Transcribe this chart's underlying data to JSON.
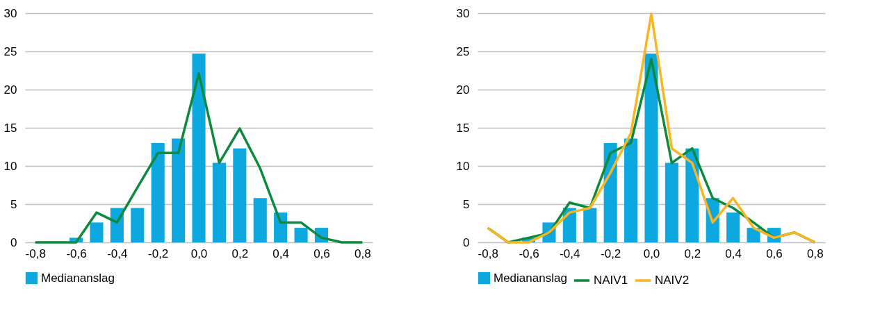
{
  "chart_data": [
    {
      "type": "bar",
      "categories": [
        "-0,8",
        null,
        "-0,6",
        null,
        "-0,4",
        null,
        "-0,2",
        null,
        "0,0",
        null,
        "0,2",
        null,
        "0,4",
        null,
        "0,6",
        null,
        "0,8"
      ],
      "ylim": [
        0,
        30
      ],
      "yticks": [
        0,
        5,
        10,
        15,
        20,
        25,
        30
      ],
      "grid": "y",
      "legend": "bottom",
      "series": [
        {
          "name": "Mediananslag",
          "color": "#0ea8e0",
          "values": [
            0,
            0,
            0.6,
            2.6,
            4.5,
            4.5,
            13,
            13.6,
            24.7,
            10.4,
            12.3,
            5.8,
            3.9,
            1.9,
            1.9,
            0,
            0
          ]
        },
        {
          "type": "line",
          "color": "#0a8a3c",
          "values": [
            0,
            0,
            0,
            3.9,
            2.6,
            7.2,
            11.7,
            11.7,
            22.1,
            10.4,
            14.9,
            9.7,
            2.6,
            2.6,
            0.6,
            0,
            0
          ]
        }
      ]
    },
    {
      "type": "bar",
      "categories": [
        "-0,8",
        null,
        "-0,6",
        null,
        "-0,4",
        null,
        "-0,2",
        null,
        "0,0",
        null,
        "0,2",
        null,
        "0,4",
        null,
        "0,6",
        null,
        "0,8"
      ],
      "ylim": [
        0,
        30
      ],
      "yticks": [
        0,
        5,
        10,
        15,
        20,
        25,
        30
      ],
      "grid": "y",
      "legend": "bottom",
      "series": [
        {
          "name": "Mediananslag",
          "color": "#0ea8e0",
          "values": [
            0,
            0,
            0.6,
            2.6,
            4.5,
            4.5,
            13,
            13.6,
            24.7,
            10.4,
            12.3,
            5.8,
            3.9,
            1.9,
            1.9,
            0,
            0
          ]
        },
        {
          "name": "NAIV1",
          "type": "line",
          "color": "#0a8a3c",
          "values": [
            1.9,
            0,
            0.6,
            1.2,
            5.2,
            4.5,
            11.7,
            13,
            24,
            10.4,
            12.3,
            5.8,
            4.5,
            2.6,
            0.6,
            1.3,
            0
          ]
        },
        {
          "name": "NAIV2",
          "type": "line",
          "color": "#fbb520",
          "values": [
            1.9,
            0,
            0,
            1.3,
            3.9,
            4.5,
            9.1,
            14.3,
            29.9,
            12.3,
            10.4,
            2.6,
            5.8,
            1.9,
            0.6,
            1.3,
            0
          ]
        }
      ]
    }
  ]
}
